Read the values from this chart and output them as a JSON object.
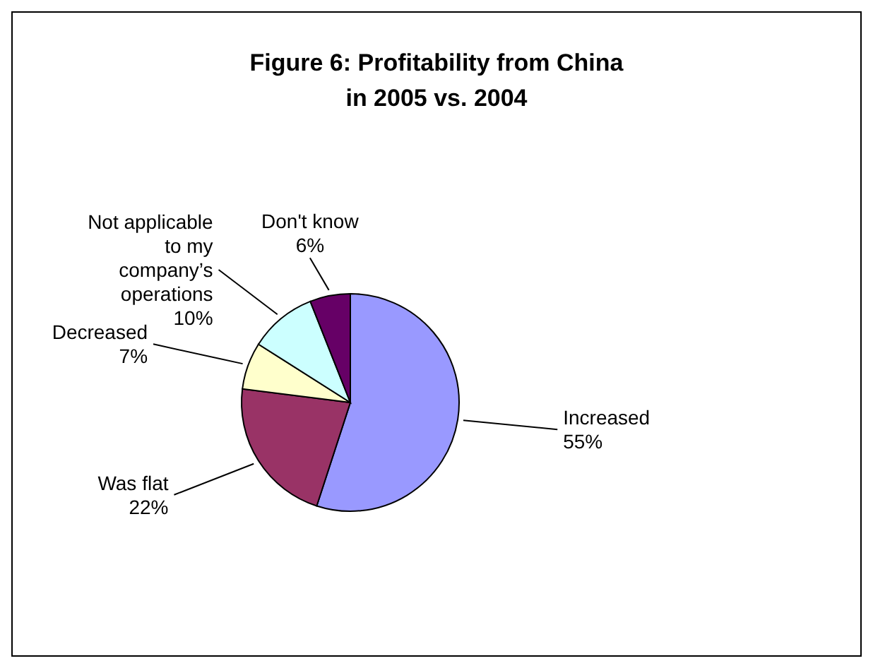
{
  "chart_data": {
    "type": "pie",
    "title": "Figure 6: Profitability from China\nin 2005 vs. 2004",
    "categories": [
      "Increased",
      "Was flat",
      "Decreased",
      "Not applicable to my company’s operations",
      "Don't know"
    ],
    "values": [
      55,
      22,
      7,
      10,
      6
    ],
    "colors": [
      "#9999ff",
      "#993366",
      "#ffffcc",
      "#ccffff",
      "#660066"
    ],
    "value_labels": [
      "55%",
      "22%",
      "7%",
      "10%",
      "6%"
    ]
  }
}
